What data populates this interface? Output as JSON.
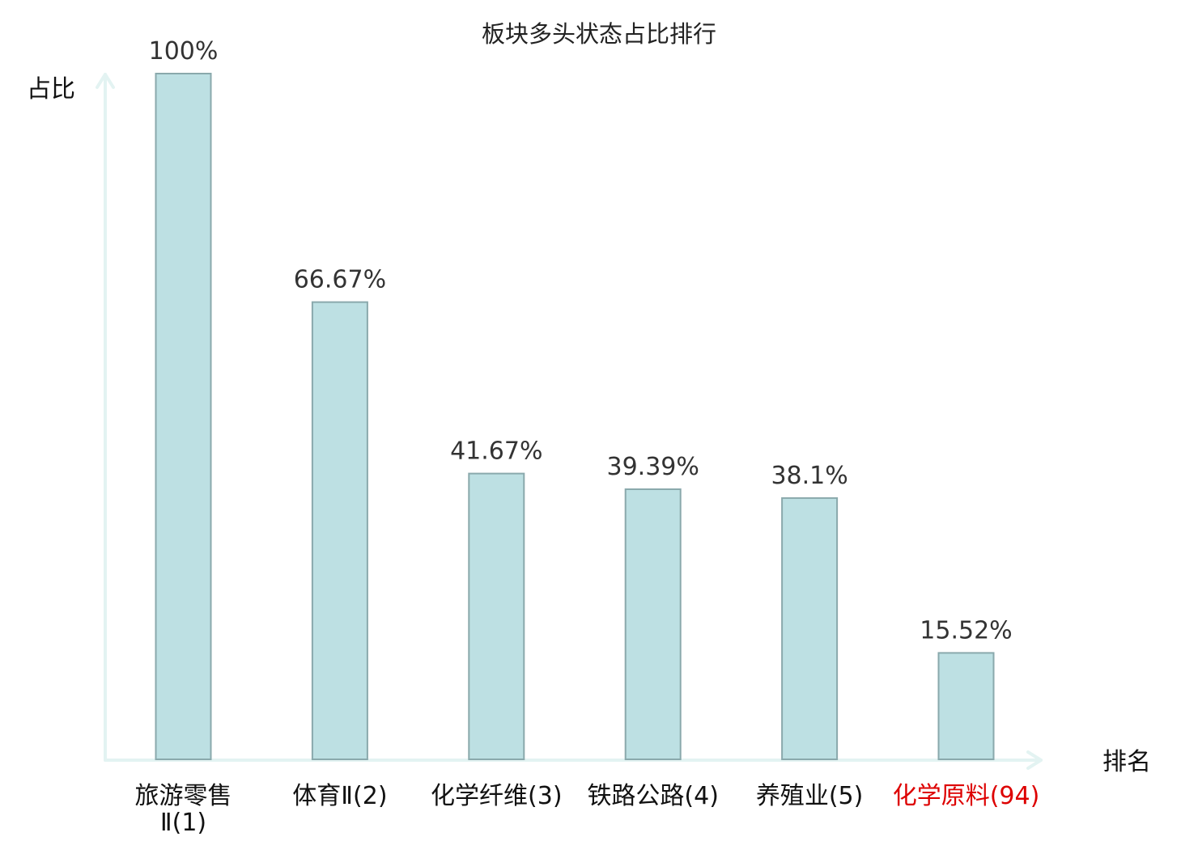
{
  "chart_data": {
    "type": "bar",
    "title": "板块多头状态占比排行",
    "ylabel": "占比",
    "xlabel": "排名",
    "ylim": [
      0,
      100
    ],
    "grid": false,
    "categories": [
      [
        "旅游零售",
        "Ⅱ(1)"
      ],
      [
        "体育Ⅱ(2)"
      ],
      [
        "化学纤维(3)"
      ],
      [
        "铁路公路(4)"
      ],
      [
        "养殖业(5)"
      ],
      [
        "化学原料(94)"
      ]
    ],
    "values": [
      100,
      66.67,
      41.67,
      39.39,
      38.1,
      15.52
    ],
    "value_labels": [
      "100%",
      "66.67%",
      "41.67%",
      "39.39%",
      "38.1%",
      "15.52%"
    ],
    "highlight_index": 5,
    "colors": {
      "bar_fill": "#bde0e3",
      "bar_stroke": "#8aa9ac",
      "axis": "#e3f3f2",
      "highlight_text": "#dd0000",
      "normal_text": "#111111",
      "value_text": "#333333"
    }
  }
}
